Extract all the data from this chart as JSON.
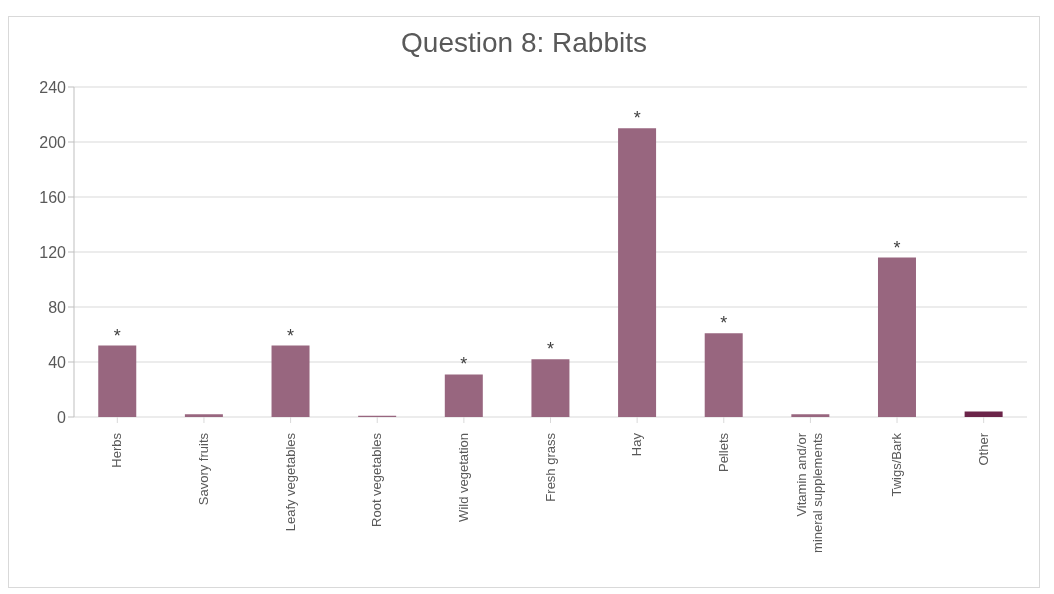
{
  "chart_data": {
    "type": "bar",
    "title": "Question 8: Rabbits",
    "categories": [
      "Herbs",
      "Savory fruits",
      "Leafy vegetables",
      "Root vegetables",
      "Wild vegetation",
      "Fresh grass",
      "Hay",
      "Pellets",
      "Vitamin and/or mineral supplements",
      "Twigs/Bark",
      "Other"
    ],
    "values": [
      52,
      2,
      52,
      1,
      31,
      42,
      210,
      61,
      2,
      116,
      4
    ],
    "colors": [
      "#98667f",
      "#98667f",
      "#98667f",
      "#98667f",
      "#98667f",
      "#98667f",
      "#98667f",
      "#98667f",
      "#98667f",
      "#98667f",
      "#6b2449"
    ],
    "ylim": [
      0,
      240
    ],
    "yticks": [
      0,
      40,
      80,
      120,
      160,
      200,
      240
    ],
    "grid": "y",
    "annotations": [
      {
        "text": "*",
        "x": "Herbs",
        "y": 52
      },
      {
        "text": "*",
        "x": "Leafy vegetables",
        "y": 52
      },
      {
        "text": "*",
        "x": "Wild vegetation",
        "y": 31
      },
      {
        "text": "*",
        "x": "Fresh grass",
        "y": 42
      },
      {
        "text": "*",
        "x": "Hay",
        "y": 210
      },
      {
        "text": "*",
        "x": "Pellets",
        "y": 61
      },
      {
        "text": "*",
        "x": "Twigs/Bark",
        "y": 116
      }
    ]
  }
}
